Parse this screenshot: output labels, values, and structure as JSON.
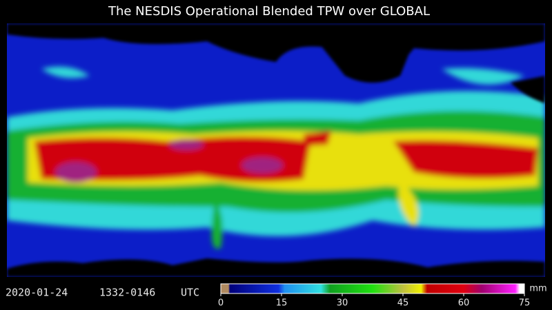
{
  "header": {
    "title": "The NESDIS Operational Blended TPW over GLOBAL"
  },
  "footer": {
    "date": "2020-01-24",
    "time": "1332-0146",
    "zone": "UTC"
  },
  "colorbar": {
    "range": [
      0,
      75
    ],
    "ticks": [
      0,
      15,
      30,
      45,
      60,
      75
    ],
    "unit": "mm"
  }
}
